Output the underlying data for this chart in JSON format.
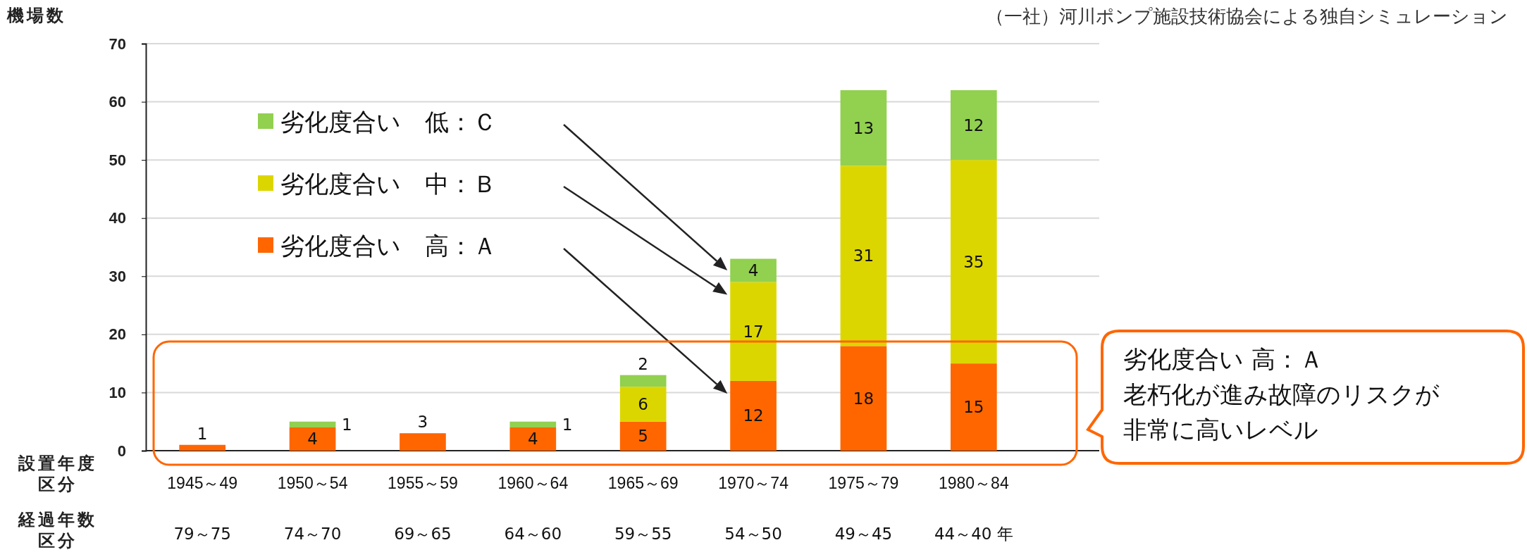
{
  "chart_data": {
    "type": "bar",
    "stacked": true,
    "ylabel": "機場数",
    "xlabel": "設置年度区分",
    "categories": [
      "1945～49",
      "1950～54",
      "1955～59",
      "1960～64",
      "1965～69",
      "1970～74",
      "1975～79",
      "1980～84"
    ],
    "series": [
      {
        "name": "劣化度合い　高：Ａ",
        "color": "#ff6600",
        "values": [
          1,
          4,
          3,
          4,
          5,
          12,
          18,
          15
        ],
        "value_labels": [
          "1",
          "4",
          "3",
          "4",
          "5",
          "12",
          "18",
          "15"
        ]
      },
      {
        "name": "劣化度合い　中：Ｂ",
        "color": "#dcd600",
        "values": [
          0,
          0,
          0,
          0,
          6,
          17,
          31,
          35
        ],
        "value_labels": [
          null,
          null,
          null,
          null,
          "6",
          "17",
          "31",
          "35"
        ]
      },
      {
        "name": "劣化度合い　低：Ｃ",
        "color": "#92d050",
        "values": [
          0,
          1,
          0,
          1,
          2,
          4,
          13,
          12
        ],
        "value_labels": [
          null,
          "1",
          null,
          "1",
          "2",
          "4",
          "13",
          "12"
        ]
      }
    ],
    "ylim": [
      0,
      70
    ],
    "yticks": [
      0,
      10,
      20,
      30,
      40,
      50,
      60,
      70
    ],
    "grid": "y",
    "legend": "top left",
    "annotations": [
      "（一社）河川ポンプ施設技術協会による独自シミュレーション",
      "劣化度合い  高：Ａ",
      "老朽化が進み故障のリスクが",
      "非常に高いレベル",
      "経過年数区分",
      "79～75",
      "74～70",
      "69～65",
      "64～60",
      "59～55",
      "54～50",
      "49～45",
      "44～40 年"
    ]
  }
}
